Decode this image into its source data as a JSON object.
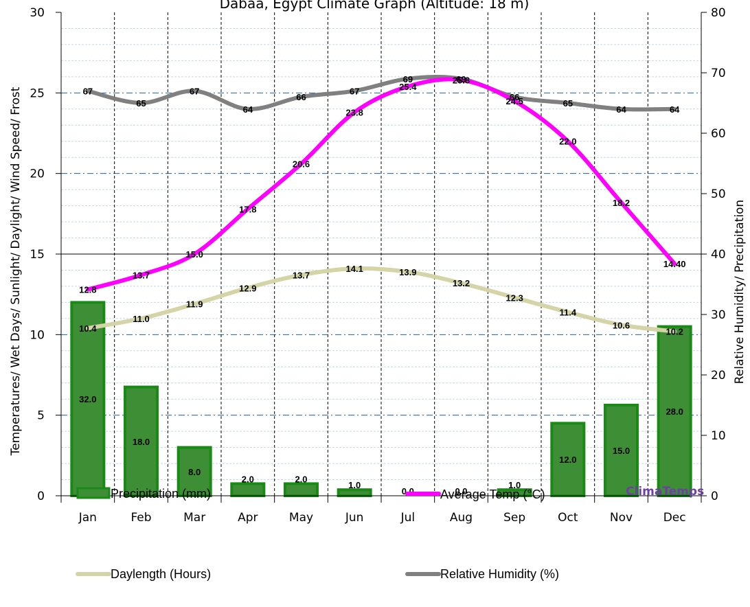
{
  "chart_data": {
    "type": "bar",
    "title": "Dabaa, Egypt Climate Graph (Altitude: 18 m)",
    "ylabel_left": "Temperatures/ Wet Days/ Sunlight/ Daylight/ Wind Speed/ Frost",
    "ylabel_right": "Relative Humidity/ Precipitation",
    "categories": [
      "Jan",
      "Feb",
      "Mar",
      "Apr",
      "May",
      "Jun",
      "Jul",
      "Aug",
      "Sep",
      "Oct",
      "Nov",
      "Dec"
    ],
    "ylim_left": [
      0,
      30
    ],
    "ylim_right": [
      0,
      80
    ],
    "yticks_left": [
      "0",
      "5",
      "10",
      "15",
      "20",
      "25",
      "30"
    ],
    "yticks_right": [
      "0",
      "10",
      "20",
      "30",
      "40",
      "50",
      "60",
      "70",
      "80"
    ],
    "grid": true,
    "legend_position": "bottom",
    "brand": "ClimaTemps",
    "series": [
      {
        "name": "Precipitation (mm)",
        "kind": "bar",
        "axis": "right",
        "color": "#3e8e35",
        "border": "#1a8a16",
        "values": [
          32.0,
          18.0,
          8.0,
          2.0,
          2.0,
          1.0,
          0.0,
          0.0,
          1.0,
          12.0,
          15.0,
          28.0
        ],
        "labels": [
          "32.0",
          "18.0",
          "8.0",
          "2.0",
          "2.0",
          "1.0",
          "0.0",
          "0.0",
          "1.0",
          "12.0",
          "15.0",
          "28.0"
        ]
      },
      {
        "name": "Average Temp (°C)",
        "kind": "line",
        "axis": "left",
        "color": "#ff00ff",
        "values": [
          12.8,
          13.7,
          15.0,
          17.8,
          20.6,
          23.8,
          25.4,
          25.8,
          24.5,
          22.0,
          18.2,
          14.4
        ],
        "labels": [
          "12.8",
          "13.7",
          "15.0",
          "17.8",
          "20.6",
          "23.8",
          "25.4",
          "25.8",
          "24.5",
          "22.0",
          "18.2",
          "14.40"
        ]
      },
      {
        "name": "Daylength (Hours)",
        "kind": "line",
        "axis": "left",
        "color": "#d4d4a6",
        "values": [
          10.4,
          11.0,
          11.9,
          12.9,
          13.7,
          14.1,
          13.9,
          13.2,
          12.3,
          11.4,
          10.6,
          10.2
        ],
        "labels": [
          "10.4",
          "11.0",
          "11.9",
          "12.9",
          "13.7",
          "14.1",
          "13.9",
          "13.2",
          "12.3",
          "11.4",
          "10.6",
          "10.2"
        ]
      },
      {
        "name": "Relative Humidity (%)",
        "kind": "line",
        "axis": "right",
        "color": "#808080",
        "values": [
          67,
          65,
          67,
          64,
          66,
          67,
          69,
          69,
          66,
          65,
          64,
          64
        ],
        "labels": [
          "67",
          "65",
          "67",
          "64",
          "66",
          "67",
          "69",
          "69",
          "66",
          "65",
          "64",
          "64"
        ]
      }
    ]
  }
}
